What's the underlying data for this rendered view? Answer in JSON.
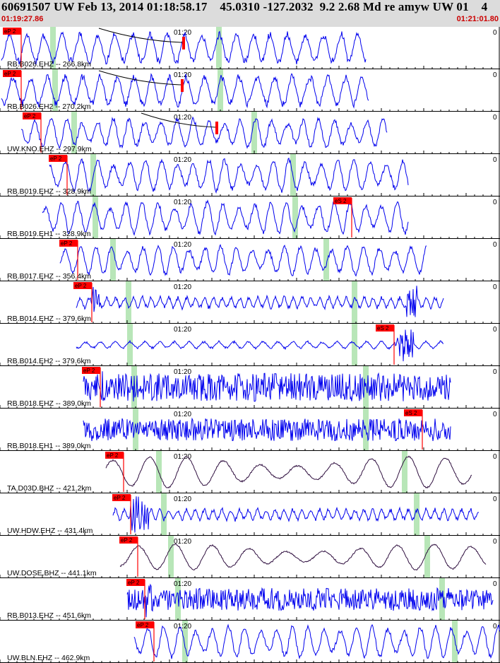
{
  "header": {
    "title": "60691507 UW Feb 13, 2014 01:18:58.17    45.0310 -127.2032  9.2 2.68 Md re amyw UW 01    4",
    "time_start": "01:19:27.86",
    "time_end": "01:21:01.80"
  },
  "colors": {
    "trace_blue": "#0000ee",
    "trace_dark": "#301040",
    "pick_red": "#ff0000",
    "green_marker": "#b8e6b8",
    "header_bg": "#dcdcdc"
  },
  "minute_label": "01:20",
  "zero_label": "0",
  "panels": [
    {
      "label": "RB.B026.EHZ -- 266.8km",
      "pick": "eP 2",
      "spick": null,
      "color": "blue"
    },
    {
      "label": "RB.B026.EH2 -- 270.2km",
      "pick": "eP 2",
      "spick": null,
      "color": "blue"
    },
    {
      "label": "UW.KNO.EHZ -- 297.9km",
      "pick": "eP 2",
      "spick": null,
      "color": "blue"
    },
    {
      "label": "RB.B019.EHZ -- 328.9km",
      "pick": "eP 2",
      "spick": null,
      "color": "blue"
    },
    {
      "label": "RB.B019.EH1 -- 328.9km",
      "pick": null,
      "spick": "eS 2",
      "color": "blue"
    },
    {
      "label": "RB.B017.EHZ -- 356.4km",
      "pick": "eP 2",
      "spick": null,
      "color": "blue"
    },
    {
      "label": "RB.B014.EHZ -- 379.6km",
      "pick": "eP 2",
      "spick": null,
      "color": "blue"
    },
    {
      "label": "RB.B014.EH2 -- 379.6km",
      "pick": null,
      "spick": "eS 2",
      "color": "blue"
    },
    {
      "label": "RB.B018.EHZ -- 389.0km",
      "pick": "eP 2",
      "spick": null,
      "color": "blue"
    },
    {
      "label": "RB.B018.EH1 -- 389.0km",
      "pick": null,
      "spick": "eS 2",
      "color": "blue"
    },
    {
      "label": "TA.D03D.BHZ -- 421.2km",
      "pick": "eP 2",
      "spick": null,
      "color": "dark"
    },
    {
      "label": "UW.HDW.EHZ -- 431.4km",
      "pick": "eP 2",
      "spick": null,
      "color": "blue"
    },
    {
      "label": "UW.DOSE.BHZ -- 441.1km",
      "pick": "eP 2",
      "spick": null,
      "color": "dark"
    },
    {
      "label": "RB.B013.EHZ -- 451.6km",
      "pick": "eP 2",
      "spick": null,
      "color": "blue"
    },
    {
      "label": "UW.BLN.EHZ -- 462.9km",
      "pick": "eP 2",
      "spick": null,
      "color": "blue"
    }
  ]
}
